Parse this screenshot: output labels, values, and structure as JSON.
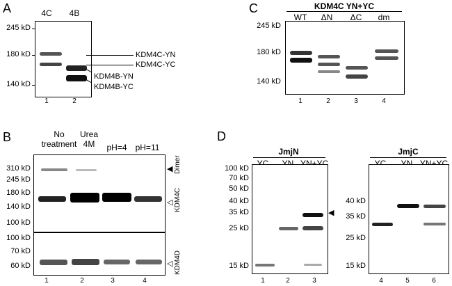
{
  "panels": {
    "A": {
      "letter": "A",
      "lanes": [
        "4C",
        "4B"
      ],
      "markers": [
        "245 kD",
        "180 kD",
        "140 kD"
      ],
      "labels": [
        "KDM4C-YN",
        "KDM4C-YC",
        "KDM4B-YN",
        "KDM4B-YC"
      ],
      "lane_numbers": [
        "1",
        "2"
      ]
    },
    "B": {
      "letter": "B",
      "lanes": [
        "No treatment",
        "Urea 4M",
        "pH=4",
        "pH=11"
      ],
      "markers_top": [
        "310 kD",
        "245 kD",
        "180 kD",
        "140 kD",
        "100 kD"
      ],
      "markers_bottom": [
        "100 kD",
        "70 kD",
        "60 kD"
      ],
      "side_labels": [
        "Dimer",
        "KDM4C",
        "KDM4D"
      ],
      "lane_numbers": [
        "1",
        "2",
        "3",
        "4"
      ]
    },
    "C": {
      "letter": "C",
      "title": "KDM4C YN+YC",
      "lanes": [
        "WT",
        "ΔN",
        "ΔC",
        "dm"
      ],
      "markers": [
        "245 kD",
        "180 kD",
        "140 kD"
      ],
      "lane_numbers": [
        "1",
        "2",
        "3",
        "4"
      ]
    },
    "D": {
      "letter": "D",
      "left": {
        "title": "JmjN",
        "lanes": [
          "YC",
          "YN",
          "YN+YC"
        ],
        "markers": [
          "100 kD",
          "70 kD",
          "50 kD",
          "40 kD",
          "35 kD",
          "25 kD",
          "15 kD"
        ],
        "lane_numbers": [
          "1",
          "2",
          "3"
        ]
      },
      "right": {
        "title": "JmjC",
        "lanes": [
          "YC",
          "YN",
          "YN+YC"
        ],
        "markers": [
          "40 kD",
          "35 kD",
          "25 kD",
          "15 kD"
        ],
        "lane_numbers": [
          "4",
          "5",
          "6"
        ]
      }
    }
  }
}
